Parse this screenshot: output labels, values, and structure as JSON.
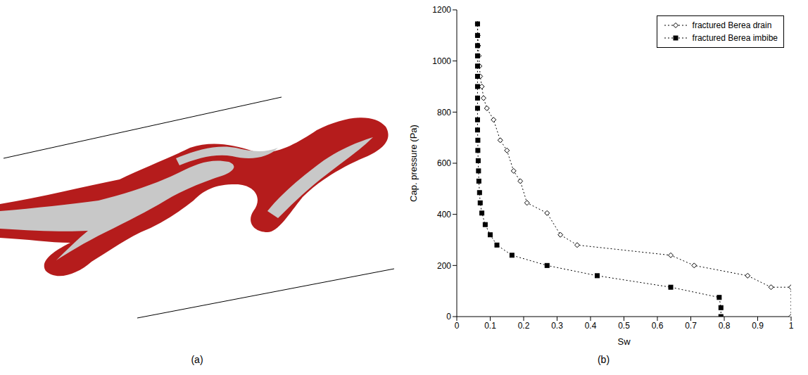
{
  "panel_labels": [
    "(a)",
    "(b)"
  ],
  "chart_data": {
    "type": "line",
    "xlabel": "Sw",
    "ylabel": "Cap. pressure (Pa)",
    "xlim": [
      0,
      1
    ],
    "ylim": [
      0,
      1200
    ],
    "xticks": [
      0,
      0.1,
      0.2,
      0.3,
      0.4,
      0.5,
      0.6,
      0.7,
      0.8,
      0.9,
      1
    ],
    "yticks": [
      0,
      200,
      400,
      600,
      800,
      1000,
      1200
    ],
    "legend": "upper right",
    "grid": false,
    "series": [
      {
        "name": "fractured Berea drain",
        "color": "#000000",
        "marker": "diamond",
        "line_style": "dotted",
        "x": [
          1,
          1,
          0.94,
          0.87,
          0.71,
          0.64,
          0.36,
          0.31,
          0.27,
          0.21,
          0.19,
          0.17,
          0.15,
          0.13,
          0.11,
          0.09,
          0.08,
          0.075,
          0.07,
          0.068,
          0.066,
          0.064,
          0.063,
          0.062
        ],
        "values": [
          0,
          115,
          115,
          160,
          200,
          240,
          280,
          320,
          405,
          445,
          530,
          570,
          650,
          690,
          770,
          815,
          855,
          900,
          940,
          980,
          1020,
          1060,
          1100,
          1145
        ]
      },
      {
        "name": "fractured Berea imbibe",
        "color": "#000000",
        "marker": "square",
        "line_style": "dotted",
        "x": [
          0.79,
          0.79,
          0.785,
          0.64,
          0.42,
          0.27,
          0.165,
          0.12,
          0.1,
          0.085,
          0.075,
          0.07,
          0.068,
          0.066,
          0.065,
          0.064,
          0.063,
          0.063,
          0.062,
          0.062,
          0.062,
          0.062,
          0.062,
          0.062,
          0.062,
          0.062,
          0.062,
          0.062,
          0.062
        ],
        "values": [
          0,
          35,
          75,
          115,
          160,
          200,
          240,
          280,
          320,
          360,
          405,
          445,
          485,
          530,
          570,
          610,
          650,
          690,
          730,
          770,
          815,
          855,
          900,
          940,
          980,
          1020,
          1060,
          1100,
          1145
        ]
      }
    ]
  }
}
